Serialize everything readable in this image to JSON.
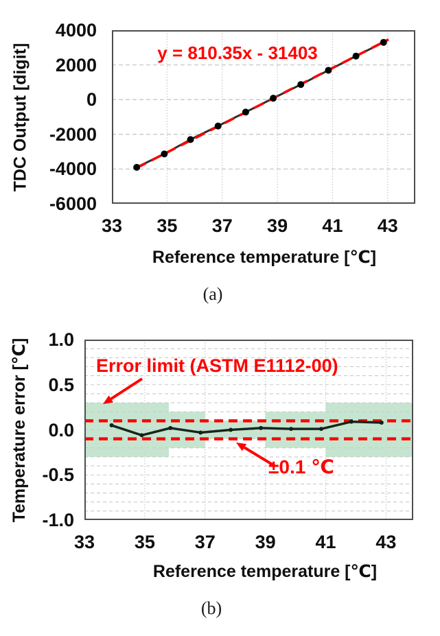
{
  "figure": {
    "captions": {
      "a": "(a)",
      "b": "(b)"
    }
  },
  "chart_data": [
    {
      "type": "scatter",
      "xlabel": "Reference temperature [℃]",
      "ylabel": "TDC Output [digit]",
      "xlim": [
        33,
        44
      ],
      "ylim": [
        -6000,
        4000
      ],
      "xtick_values": [
        33,
        35,
        37,
        39,
        41,
        43
      ],
      "xtick_labels": [
        "33",
        "35",
        "37",
        "39",
        "41",
        "43"
      ],
      "ytick_values": [
        4000,
        2000,
        0,
        -2000,
        -4000,
        -6000
      ],
      "ytick_labels": [
        "4000",
        "2000",
        "0",
        "-2000",
        "-4000",
        "-6000"
      ],
      "x_gridlines": [
        35,
        37,
        39,
        41,
        43
      ],
      "y_gridlines": [
        2000,
        0,
        -2000,
        -4000
      ],
      "x": [
        33.9,
        34.9,
        35.85,
        36.85,
        37.85,
        38.85,
        39.85,
        40.85,
        41.85,
        42.85
      ],
      "y": [
        -3900,
        -3130,
        -2300,
        -1520,
        -720,
        80,
        870,
        1690,
        2510,
        3300
      ],
      "trendline": {
        "label": "y = 810.35x - 31403",
        "slope": 810.35,
        "intercept": -31403,
        "color": "#ff0000"
      },
      "line_color": "#2e2e2e",
      "marker_color": "#000000",
      "grid": true
    },
    {
      "type": "line",
      "xlabel": "Reference temperature [℃]",
      "ylabel": "Temperature error [℃]",
      "xlim": [
        33,
        43.9
      ],
      "ylim": [
        -1.0,
        1.0
      ],
      "xtick_values": [
        33,
        35,
        37,
        39,
        41,
        43
      ],
      "xtick_labels": [
        "33",
        "35",
        "37",
        "39",
        "41",
        "43"
      ],
      "ytick_values": [
        1.0,
        0.5,
        0.0,
        -0.5,
        -1.0
      ],
      "ytick_labels": [
        "1.0",
        "0.5",
        "0.0",
        "-0.5",
        "-1.0"
      ],
      "x_gridlines": [
        35,
        37,
        39,
        41,
        43
      ],
      "minor_y_grid_step": 0.1,
      "x": [
        33.9,
        34.9,
        35.85,
        36.85,
        37.85,
        38.85,
        39.85,
        40.85,
        41.85,
        42.85
      ],
      "y": [
        0.05,
        -0.06,
        0.02,
        -0.03,
        0.0,
        0.02,
        0.01,
        0.01,
        0.09,
        0.08
      ],
      "error_band": {
        "color": "#c6e5d0",
        "sections": [
          {
            "x_start": 33.0,
            "x_end": 35.8,
            "limit": 0.3
          },
          {
            "x_start": 35.8,
            "x_end": 37.0,
            "limit": 0.2
          },
          {
            "x_start": 37.0,
            "x_end": 39.0,
            "limit": 0.1
          },
          {
            "x_start": 39.0,
            "x_end": 41.0,
            "limit": 0.2
          },
          {
            "x_start": 41.0,
            "x_end": 43.9,
            "limit": 0.3
          }
        ]
      },
      "limit_lines": {
        "values": [
          0.1,
          -0.1
        ],
        "color": "#ff0000"
      },
      "annotations": {
        "error_limit_label": "Error limit (ASTM E1112-00)",
        "limit_value_label": "±0.1 ℃"
      },
      "line_color": "#16271c",
      "marker_color": "#10211a",
      "grid": true
    }
  ]
}
